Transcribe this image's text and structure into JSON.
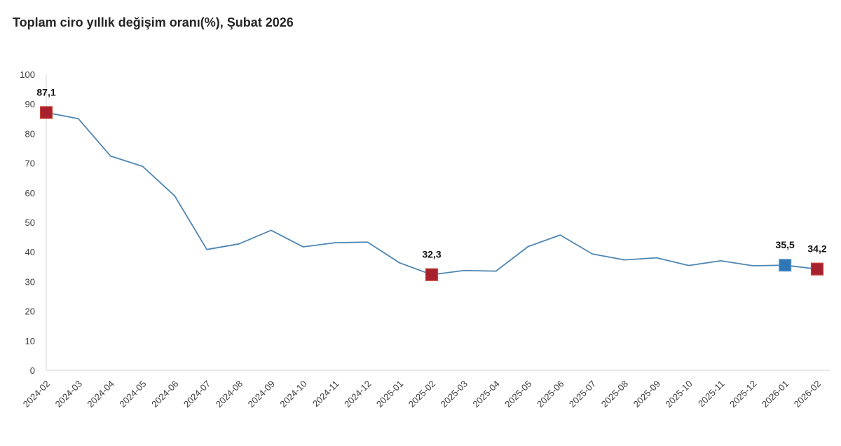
{
  "page": {
    "title": "Toplam ciro yıllık değişim oranı(%), Şubat 2026"
  },
  "chart_data": {
    "type": "line",
    "title": "Toplam ciro yıllık değişim oranı(%), Şubat 2026",
    "categories": [
      "2024-02",
      "2024-03",
      "2024-04",
      "2024-05",
      "2024-06",
      "2024-07",
      "2024-08",
      "2024-09",
      "2024-10",
      "2024-11",
      "2024-12",
      "2025-01",
      "2025-02",
      "2025-03",
      "2025-04",
      "2025-05",
      "2025-06",
      "2025-07",
      "2025-08",
      "2025-09",
      "2025-10",
      "2025-11",
      "2025-12",
      "2026-01",
      "2026-02"
    ],
    "series": [
      {
        "name": "Toplam ciro yıllık değişim oranı (%)",
        "values": [
          87.1,
          85.0,
          72.4,
          68.9,
          58.9,
          40.8,
          42.7,
          47.3,
          41.7,
          43.1,
          43.3,
          36.3,
          32.3,
          33.7,
          33.5,
          41.8,
          45.7,
          39.3,
          37.3,
          38.0,
          35.4,
          37.0,
          35.3,
          35.5,
          34.2
        ]
      }
    ],
    "highlights": [
      {
        "index": 0,
        "label": "87,1",
        "marker_color": "#a7202d",
        "marker_stroke": "#cc4435"
      },
      {
        "index": 12,
        "label": "32,3",
        "marker_color": "#a7202d",
        "marker_stroke": "#cc4435"
      },
      {
        "index": 23,
        "label": "35,5",
        "marker_color": "#2f76b5",
        "marker_stroke": "#6aa3d8"
      },
      {
        "index": 24,
        "label": "34,2",
        "marker_color": "#a7202d",
        "marker_stroke": "#cc4435"
      }
    ],
    "ylabel": "",
    "xlabel": "",
    "ylim": [
      0,
      100
    ],
    "yticks": [
      0,
      10,
      20,
      30,
      40,
      50,
      60,
      70,
      80,
      90,
      100
    ],
    "grid": false,
    "legend_position": "none",
    "line_color": "#4e86b2",
    "axis_color": "#d6d6d6",
    "tick_color": "#3c3c3c",
    "decimal_separator": ","
  }
}
